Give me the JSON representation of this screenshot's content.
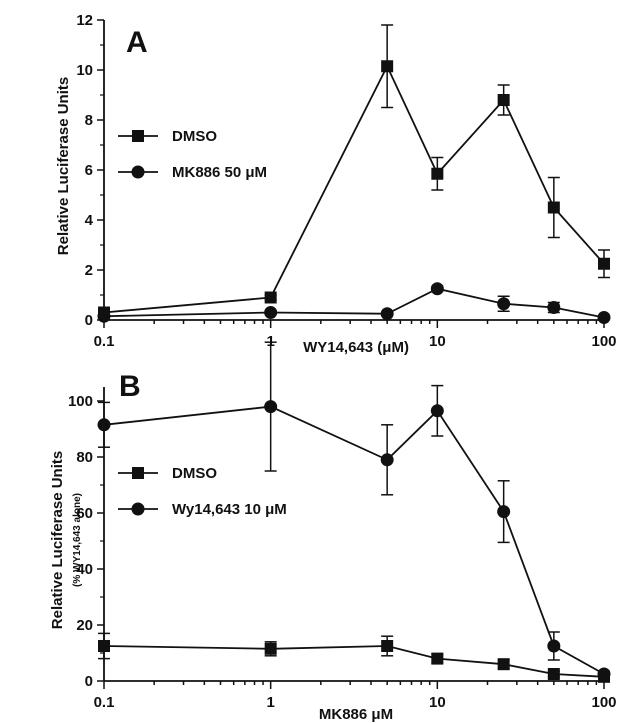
{
  "chart_data": [
    {
      "type": "line",
      "panel_label": "A",
      "xlabel": "WY14,643 (μM)",
      "ylabel": "Relative Luciferase Units",
      "ylabel_sub": "",
      "x_scale": "log",
      "xlim": [
        0.1,
        100
      ],
      "ylim": [
        0,
        12
      ],
      "xticks": [
        0.1,
        1,
        10,
        100
      ],
      "xtick_labels": [
        "0.1",
        "1",
        "10",
        "100"
      ],
      "yticks": [
        0,
        2,
        4,
        6,
        8,
        10,
        12
      ],
      "ytick_labels": [
        "0",
        "2",
        "4",
        "6",
        "8",
        "10",
        "12"
      ],
      "grid": false,
      "legend_position": "middle-left",
      "series": [
        {
          "name": "DMSO",
          "marker": "square",
          "x": [
            0.1,
            1,
            5,
            10,
            25,
            50,
            100
          ],
          "y": [
            0.3,
            0.9,
            10.15,
            5.85,
            8.8,
            4.5,
            2.25
          ],
          "err": [
            0.15,
            0.1,
            1.65,
            0.65,
            0.6,
            1.2,
            0.55
          ]
        },
        {
          "name": "MK886 50 μM",
          "marker": "circle",
          "x": [
            0.1,
            1,
            5,
            10,
            25,
            50,
            100
          ],
          "y": [
            0.15,
            0.3,
            0.25,
            1.25,
            0.65,
            0.5,
            0.1
          ],
          "err": [
            0.05,
            0.05,
            0.05,
            0.1,
            0.3,
            0.2,
            0.05
          ]
        }
      ]
    },
    {
      "type": "line",
      "panel_label": "B",
      "xlabel": "MK886 μM",
      "ylabel": "Relative Luciferase Units",
      "ylabel_sub": "(% WY14,643 alone)",
      "x_scale": "log",
      "xlim": [
        0.1,
        100
      ],
      "ylim": [
        0,
        105
      ],
      "xticks": [
        0.1,
        1,
        10,
        100
      ],
      "xtick_labels": [
        "0.1",
        "1",
        "10",
        "100"
      ],
      "yticks": [
        0,
        20,
        40,
        60,
        80,
        100
      ],
      "ytick_labels": [
        "0",
        "20",
        "40",
        "60",
        "80",
        "100"
      ],
      "grid": false,
      "legend_position": "upper-left",
      "series": [
        {
          "name": "DMSO",
          "marker": "square",
          "x": [
            0.1,
            1,
            5,
            10,
            25,
            50,
            100
          ],
          "y": [
            12.5,
            11.5,
            12.5,
            8,
            6,
            2.5,
            1.5
          ],
          "err": [
            4.5,
            2.5,
            3.5,
            1.5,
            1.5,
            1,
            0.5
          ]
        },
        {
          "name": "Wy14,643 10 μM",
          "marker": "circle",
          "x": [
            0.1,
            1,
            5,
            10,
            25,
            50,
            100
          ],
          "y": [
            91.5,
            98,
            79,
            96.5,
            60.5,
            12.5,
            2.5
          ],
          "err": [
            8,
            23,
            12.5,
            9,
            11,
            5,
            1
          ]
        }
      ]
    }
  ]
}
